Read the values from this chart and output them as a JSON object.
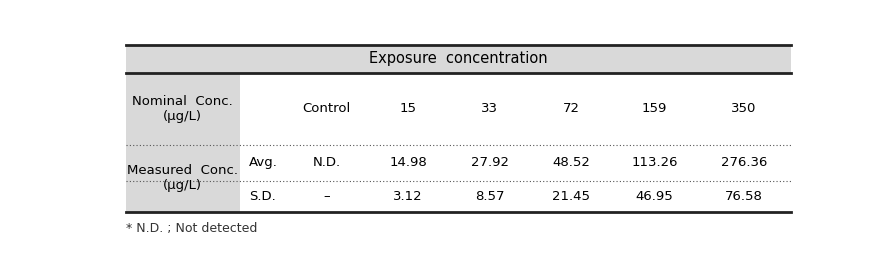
{
  "title": "Exposure  concentration",
  "header_bg": "#d9d9d9",
  "col1_bg": "#d9d9d9",
  "white_bg": "#ffffff",
  "nominal_label": "Nominal  Conc.\n(μg/L)",
  "measured_label": "Measured  Conc.\n(μg/L)",
  "conc_headers": [
    "Control",
    "15",
    "33",
    "72",
    "159",
    "350"
  ],
  "avg_values": [
    "N.D.",
    "14.98",
    "27.92",
    "48.52",
    "113.26",
    "276.36"
  ],
  "sd_values": [
    "–",
    "3.12",
    "8.57",
    "21.45",
    "46.95",
    "76.58"
  ],
  "footnote": "* N.D. ; Not detected",
  "font_size": 9.5,
  "title_font_size": 10.5
}
